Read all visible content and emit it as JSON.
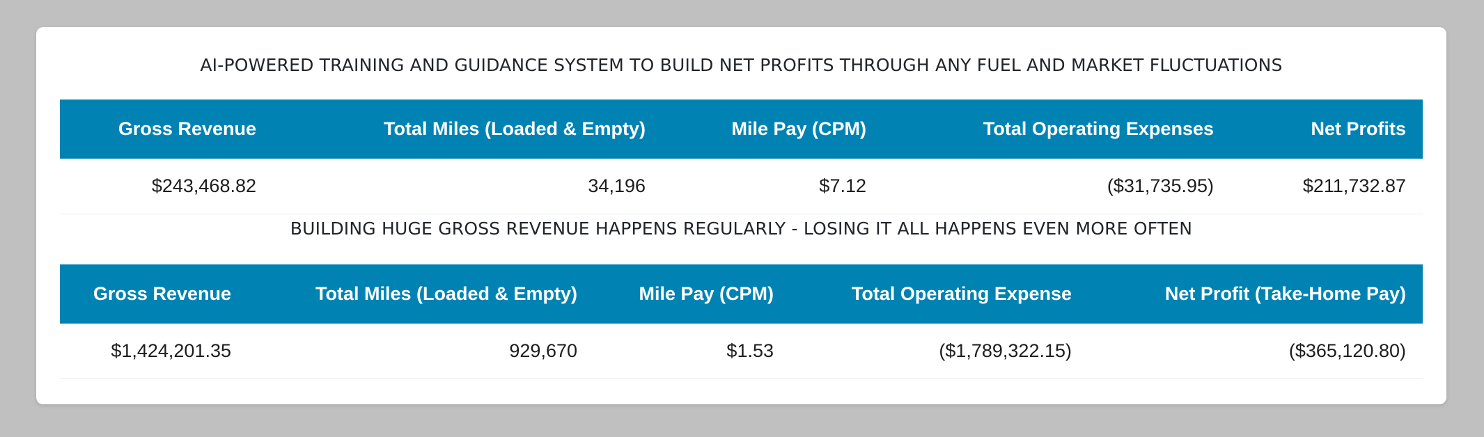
{
  "section1": {
    "title": "AI-POWERED TRAINING AND GUIDANCE SYSTEM TO BUILD NET PROFITS THROUGH ANY FUEL AND MARKET FLUCTUATIONS",
    "headers": [
      "Gross Revenue",
      "Total Miles (Loaded & Empty)",
      "Mile Pay (CPM)",
      "Total Operating Expenses",
      "Net Profits"
    ],
    "row": [
      "$243,468.82",
      "34,196",
      "$7.12",
      "($31,735.95)",
      "$211,732.87"
    ]
  },
  "section2": {
    "title": "BUILDING HUGE GROSS REVENUE HAPPENS REGULARLY - LOSING IT ALL HAPPENS EVEN MORE OFTEN",
    "headers": [
      "Gross Revenue",
      "Total Miles (Loaded & Empty)",
      "Mile Pay (CPM)",
      "Total Operating Expense",
      "Net Profit (Take-Home Pay)"
    ],
    "row": [
      "$1,424,201.35",
      "929,670",
      "$1.53",
      "($1,789,322.15)",
      "($365,120.80)"
    ]
  },
  "colors": {
    "page_background": "#c0c0c0",
    "card_background": "#ffffff",
    "header_background": "#0083b3",
    "header_text": "#ffffff"
  }
}
